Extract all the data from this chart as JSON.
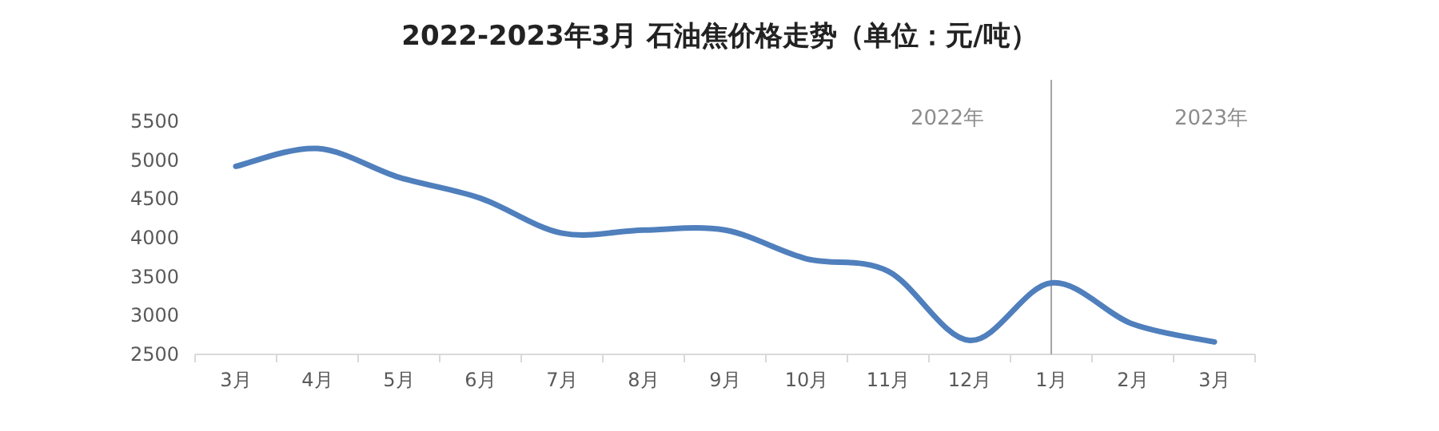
{
  "chart_data": {
    "type": "line",
    "title": "2022-2023年3月 石油焦价格走势（单位：元/吨）",
    "categories": [
      "3月",
      "4月",
      "5月",
      "6月",
      "7月",
      "8月",
      "9月",
      "10月",
      "11月",
      "12月",
      "1月",
      "2月",
      "3月"
    ],
    "series": [
      {
        "color": "#4f7fbc",
        "values": [
          4920,
          5150,
          4780,
          4510,
          4060,
          4100,
          4100,
          3730,
          3570,
          2680,
          3420,
          2890,
          2660
        ]
      }
    ],
    "ylim": [
      2500,
      5500
    ],
    "yticks": [
      2500,
      3000,
      3500,
      4000,
      4500,
      5000,
      5500
    ],
    "marker": "none",
    "line_style": "solid",
    "ref_lines": [
      {
        "axis": "x",
        "value": "1月",
        "color": "#a6a6a6"
      }
    ],
    "annotations": [
      "2022年",
      "2023年"
    ]
  }
}
